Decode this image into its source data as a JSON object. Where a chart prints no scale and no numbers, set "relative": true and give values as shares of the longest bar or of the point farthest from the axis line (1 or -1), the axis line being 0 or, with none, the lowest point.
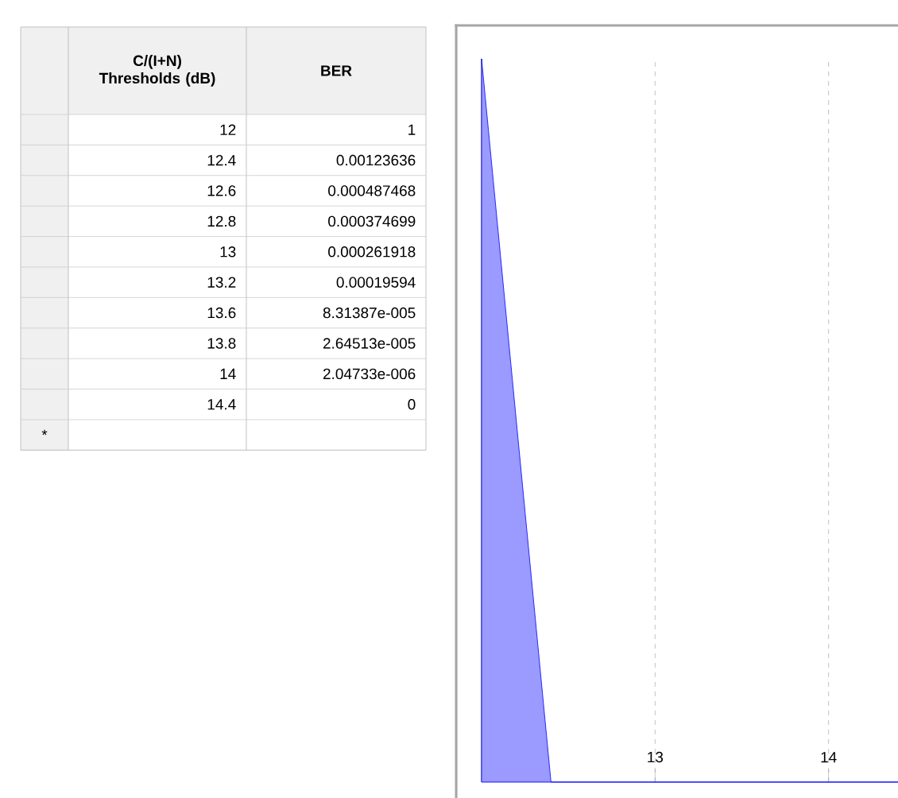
{
  "chart_data": [
    {
      "type": "other",
      "annotations": [
        "C/(I+N) Thresholds (dB)",
        "BER",
        "12",
        "1",
        "12.4",
        "0.00123636",
        "12.6",
        "0.000487468",
        "12.8",
        "0.000374699",
        "13",
        "0.000261918",
        "13.2",
        "0.00019594",
        "13.6",
        "8.31387e-005",
        "13.8",
        "2.64513e-005",
        "14",
        "2.04733e-006",
        "14.4",
        "0",
        "*"
      ]
    },
    {
      "type": "area",
      "relative": true,
      "x": [
        12,
        12.4,
        12.6,
        12.8,
        13,
        13.2,
        13.6,
        13.8,
        14,
        14.4
      ],
      "series": [
        {
          "color": "#9a9aff",
          "values": [
            1,
            0,
            0,
            0,
            0,
            0,
            0,
            0,
            0,
            0
          ]
        }
      ],
      "xlim": [
        12,
        14.4
      ],
      "xticks": [
        13,
        14
      ],
      "grid": "x",
      "tick_labels": "x"
    }
  ]
}
